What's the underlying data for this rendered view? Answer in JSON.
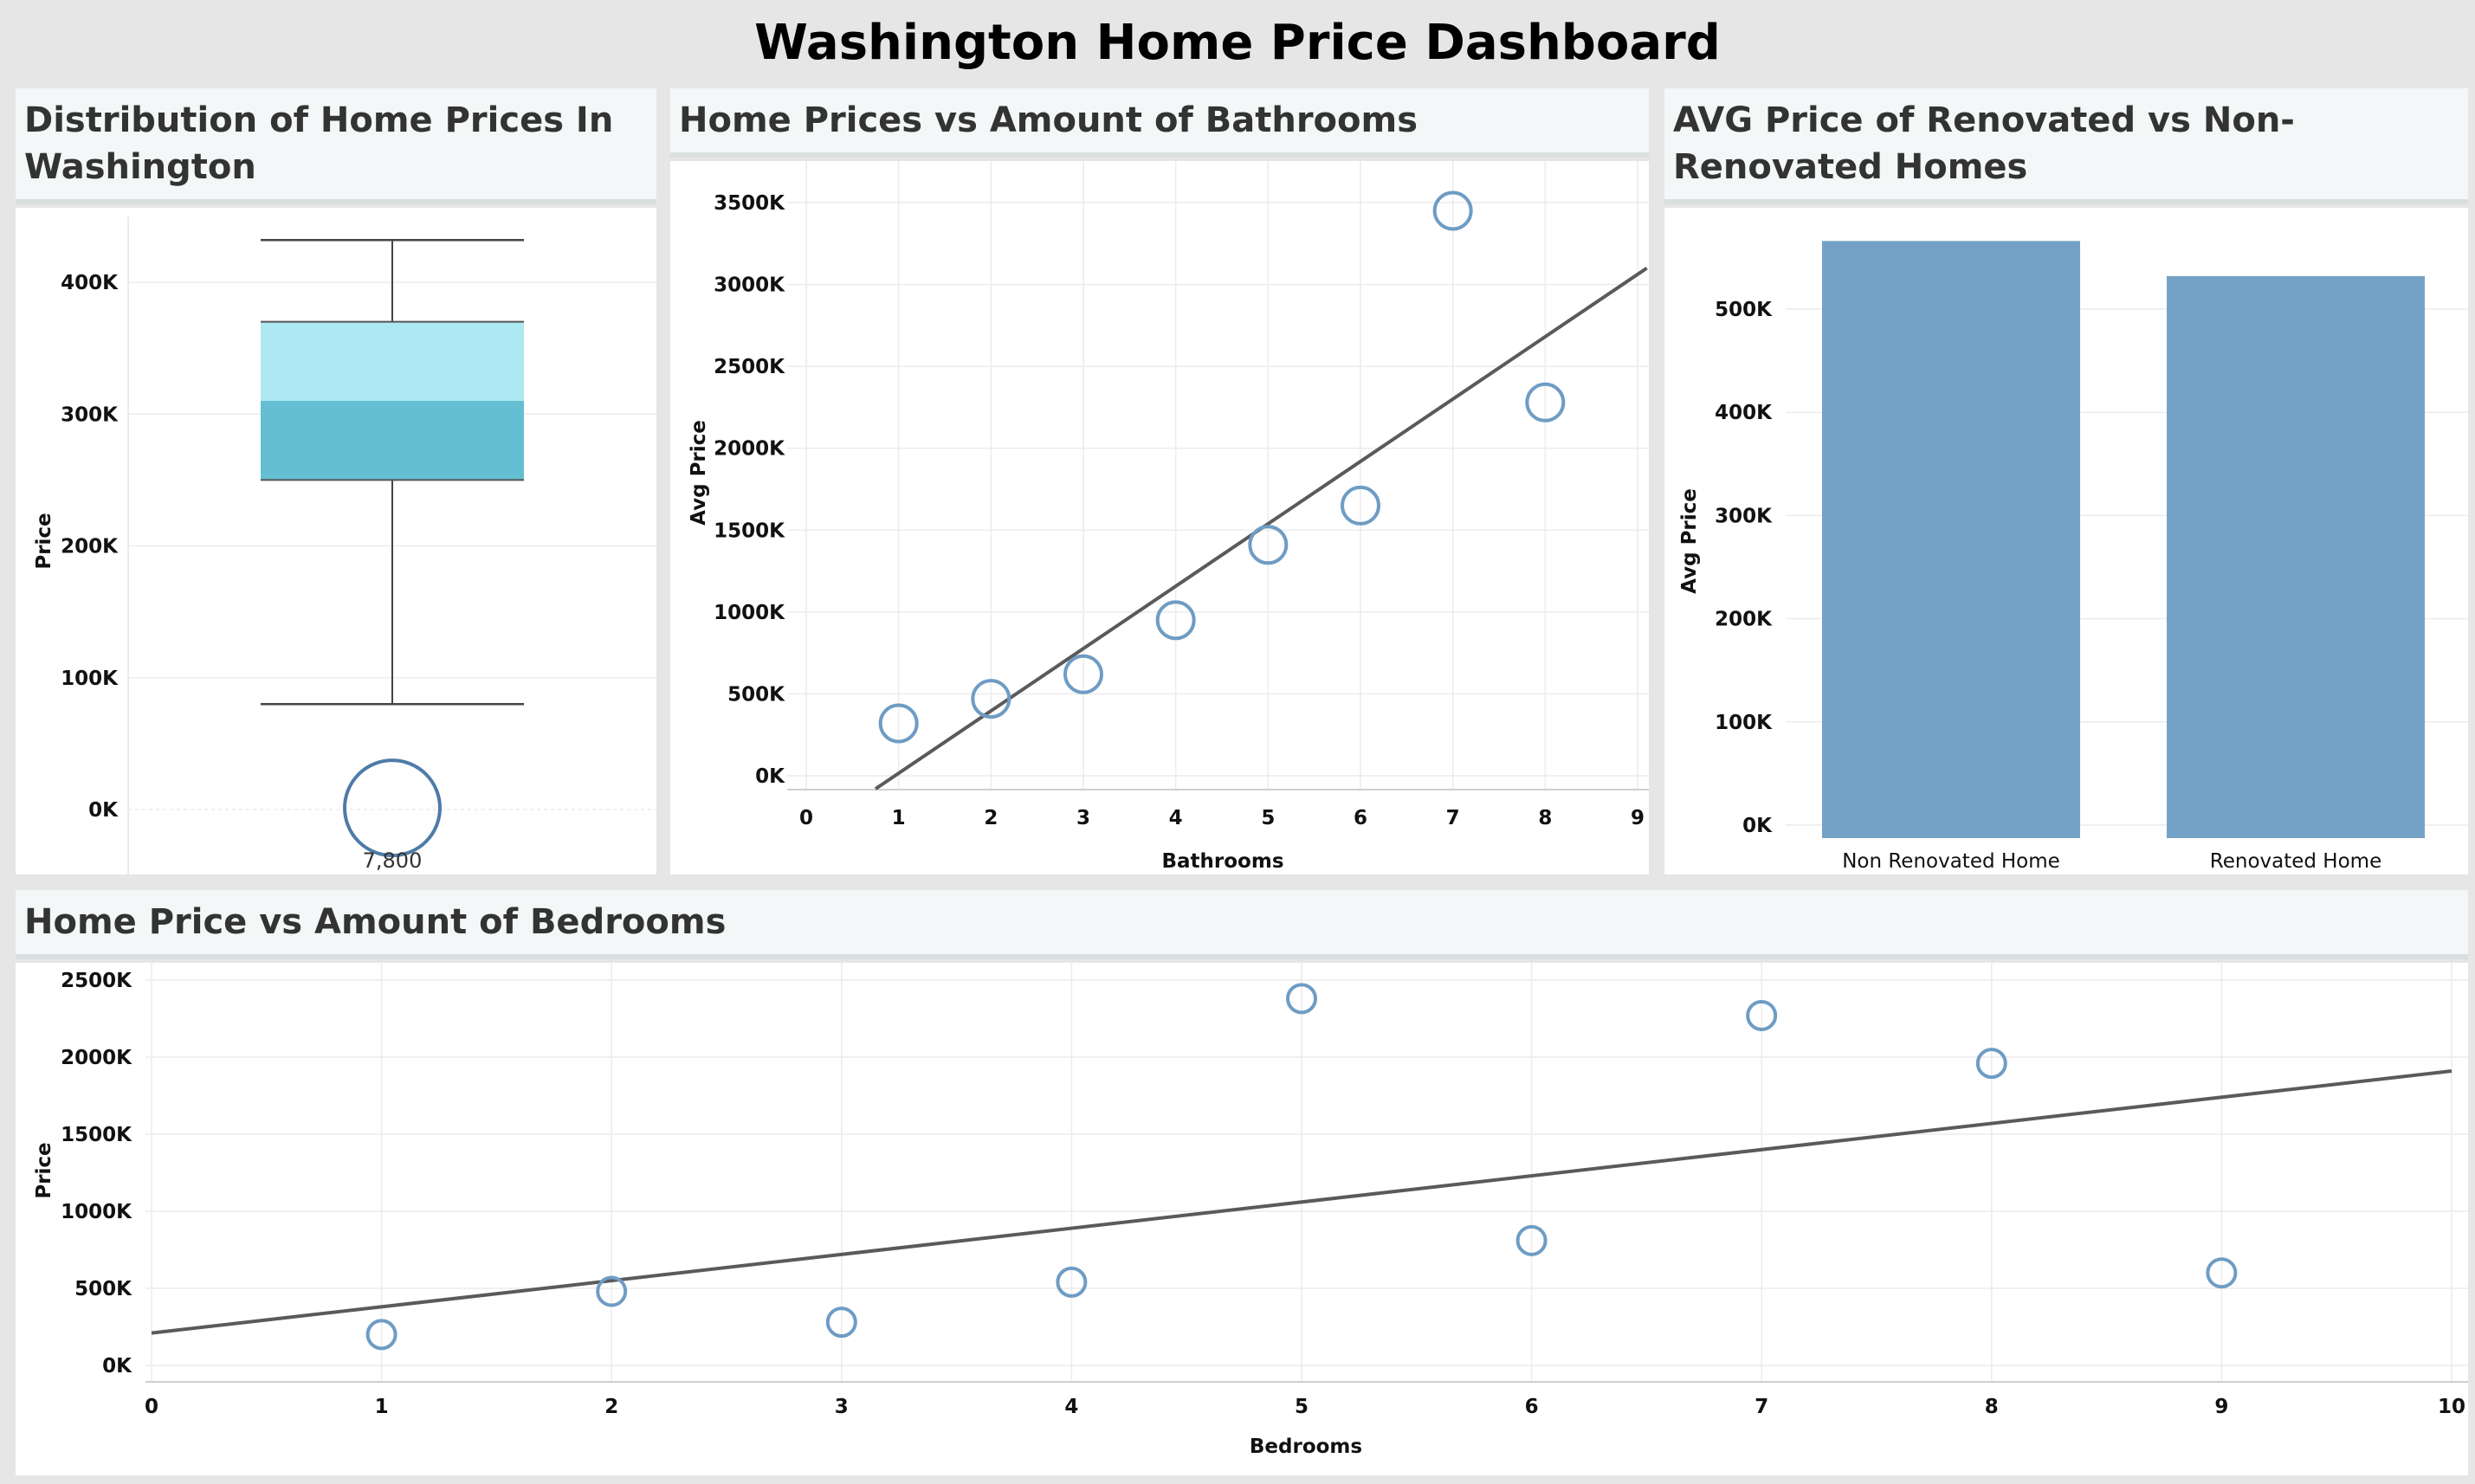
{
  "dashboard": {
    "title": "Washington Home Price Dashboard"
  },
  "panels": {
    "box": {
      "title": "Distribution of Home Prices In Washington"
    },
    "bath": {
      "title": "Home Prices vs Amount of Bathrooms"
    },
    "reno": {
      "title": "AVG Price of Renovated vs Non-Renovated Homes"
    },
    "bed": {
      "title": "Home Price vs Amount of Bedrooms"
    }
  },
  "colors": {
    "box_upper": "#aee8f2",
    "box_lower": "#63bfd1",
    "marker": "#6e9cc4",
    "bar": "#74a2c6",
    "trend": "#5a5a5a"
  },
  "chart_data": [
    {
      "type": "box",
      "title": "Distribution of Home Prices In Washington",
      "ylabel": "Price",
      "ylim": [
        0,
        450000
      ],
      "yticks": [
        0,
        100000,
        200000,
        300000,
        400000
      ],
      "ytick_labels": [
        "0K",
        "100K",
        "200K",
        "300K",
        "400K"
      ],
      "whisker_low": 80000,
      "q1": 250000,
      "median": 310000,
      "q3": 370000,
      "whisker_high": 432000,
      "outlier": {
        "y": 7800,
        "label": "7,800"
      }
    },
    {
      "type": "scatter",
      "title": "Home Prices vs Amount of Bathrooms",
      "xlabel": "Bathrooms",
      "ylabel": "Avg Price",
      "xlim": [
        0,
        9
      ],
      "ylim": [
        -80000,
        3650000
      ],
      "xticks": [
        0,
        1,
        2,
        3,
        4,
        5,
        6,
        7,
        8,
        9
      ],
      "yticks": [
        0,
        500000,
        1000000,
        1500000,
        2000000,
        2500000,
        3000000,
        3500000
      ],
      "ytick_labels": [
        "0K",
        "500K",
        "1000K",
        "1500K",
        "2000K",
        "2500K",
        "3000K",
        "3500K"
      ],
      "points": [
        {
          "x": 1,
          "y": 320000
        },
        {
          "x": 2,
          "y": 470000
        },
        {
          "x": 3,
          "y": 620000
        },
        {
          "x": 4,
          "y": 950000
        },
        {
          "x": 5,
          "y": 1410000
        },
        {
          "x": 6,
          "y": 1650000
        },
        {
          "x": 7,
          "y": 3450000
        },
        {
          "x": 8,
          "y": 2280000
        }
      ],
      "trend_line": {
        "x": [
          0.75,
          9.1
        ],
        "y": [
          -80000,
          3100000
        ]
      }
    },
    {
      "type": "bar",
      "title": "AVG Price of Renovated vs Non-Renovated Homes",
      "ylabel": "Avg Price",
      "categories": [
        "Non Renovated Home",
        "Renovated Home"
      ],
      "values": [
        566000,
        532000
      ],
      "ylim": [
        0,
        590000
      ],
      "yticks": [
        0,
        100000,
        200000,
        300000,
        400000,
        500000
      ],
      "ytick_labels": [
        "0K",
        "100K",
        "200K",
        "300K",
        "400K",
        "500K"
      ]
    },
    {
      "type": "scatter",
      "title": "Home Price vs Amount of Bedrooms",
      "xlabel": "Bedrooms",
      "ylabel": "Price",
      "xlim": [
        0,
        10
      ],
      "ylim": [
        -50000,
        2500000
      ],
      "xticks": [
        0,
        1,
        2,
        3,
        4,
        5,
        6,
        7,
        8,
        9,
        10
      ],
      "yticks": [
        0,
        500000,
        1000000,
        1500000,
        2000000,
        2500000
      ],
      "ytick_labels": [
        "0K",
        "500K",
        "1000K",
        "1500K",
        "2000K",
        "2500K"
      ],
      "points": [
        {
          "x": 1,
          "y": 200000
        },
        {
          "x": 2,
          "y": 480000
        },
        {
          "x": 3,
          "y": 280000
        },
        {
          "x": 4,
          "y": 540000
        },
        {
          "x": 5,
          "y": 2380000
        },
        {
          "x": 6,
          "y": 810000
        },
        {
          "x": 7,
          "y": 2270000
        },
        {
          "x": 8,
          "y": 1960000
        },
        {
          "x": 9,
          "y": 600000
        }
      ],
      "trend_line": {
        "x": [
          0,
          10
        ],
        "y": [
          210000,
          1910000
        ]
      }
    }
  ]
}
